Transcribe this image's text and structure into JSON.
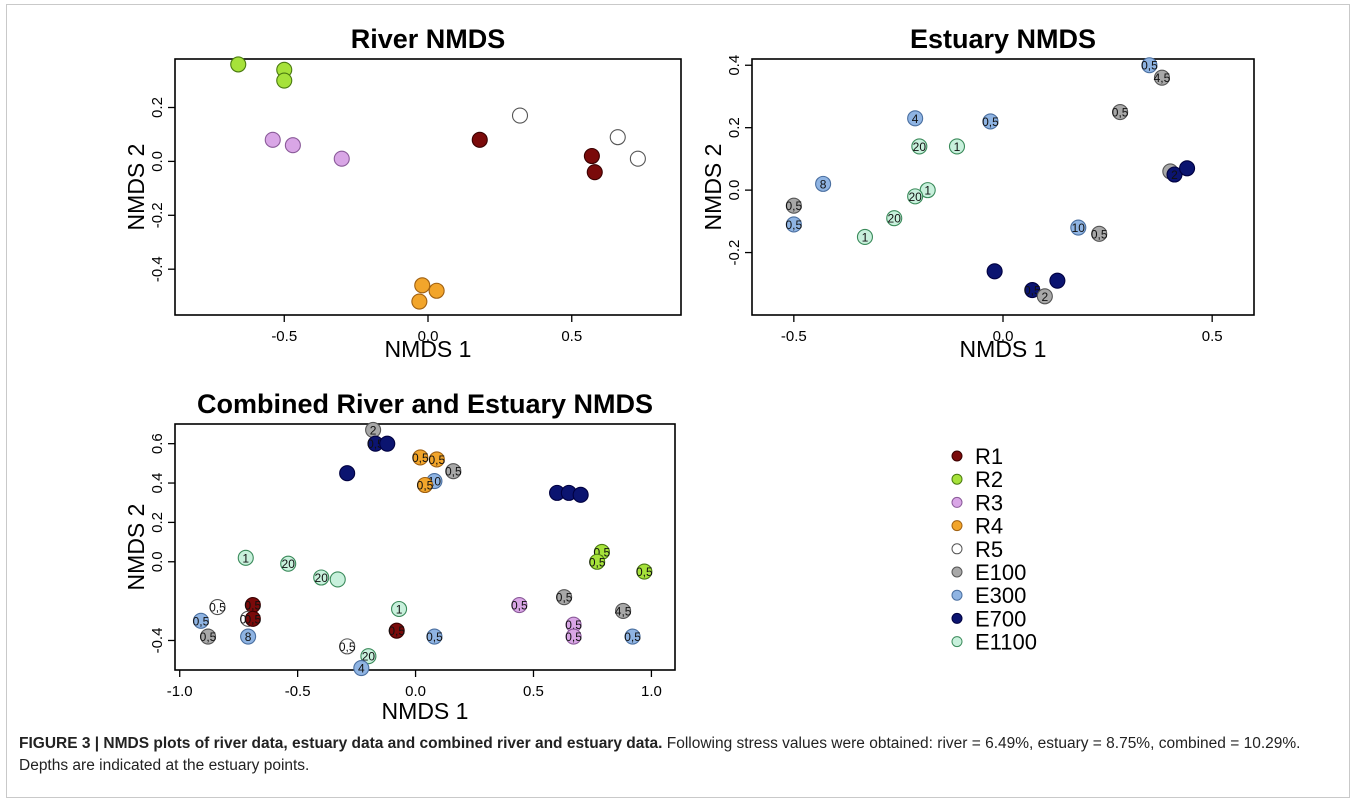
{
  "caption": {
    "figure_label": "FIGURE 3 | NMDS plots of river data, estuary data and combined river and estuary data.",
    "text": " Following stress values were obtained: river = 6.49%, estuary = 8.75%, combined = 10.29%. Depths are indicated at the estuary points."
  },
  "legend": {
    "entries": [
      {
        "label": "R1",
        "color": "#7a0a0a",
        "stroke": "#3a0000"
      },
      {
        "label": "R2",
        "color": "#a6e23a",
        "stroke": "#4a7a10"
      },
      {
        "label": "R3",
        "color": "#d9a6e6",
        "stroke": "#8a5a99"
      },
      {
        "label": "R4",
        "color": "#f2a52b",
        "stroke": "#a06010"
      },
      {
        "label": "R5",
        "color": "#ffffff",
        "stroke": "#555555"
      },
      {
        "label": "E100",
        "color": "#a8a8a8",
        "stroke": "#555555"
      },
      {
        "label": "E300",
        "color": "#8fb4e3",
        "stroke": "#4a6fa0"
      },
      {
        "label": "E700",
        "color": "#0b1470",
        "stroke": "#000040"
      },
      {
        "label": "E1100",
        "color": "#c8f0dc",
        "stroke": "#3a8a5a"
      }
    ]
  },
  "chart_data": [
    {
      "type": "scatter",
      "title": "River NMDS",
      "xlabel": "NMDS 1",
      "ylabel": "NMDS 2",
      "xlim": [
        -0.88,
        0.88
      ],
      "ylim": [
        -0.57,
        0.38
      ],
      "xticks": [
        "-0.5",
        "0.0",
        "0.5"
      ],
      "xtick_values": [
        -0.5,
        0.0,
        0.5
      ],
      "yticks": [
        "-0.4",
        "-0.2",
        "0.0",
        "0.2"
      ],
      "ytick_values": [
        -0.4,
        -0.2,
        0.0,
        0.2
      ],
      "points": [
        {
          "x": -0.66,
          "y": 0.36,
          "group": "R2",
          "label": ""
        },
        {
          "x": -0.5,
          "y": 0.34,
          "group": "R2",
          "label": ""
        },
        {
          "x": -0.5,
          "y": 0.3,
          "group": "R2",
          "label": ""
        },
        {
          "x": -0.54,
          "y": 0.08,
          "group": "R3",
          "label": ""
        },
        {
          "x": -0.47,
          "y": 0.06,
          "group": "R3",
          "label": ""
        },
        {
          "x": -0.3,
          "y": 0.01,
          "group": "R3",
          "label": ""
        },
        {
          "x": 0.18,
          "y": 0.08,
          "group": "R1",
          "label": ""
        },
        {
          "x": 0.57,
          "y": 0.02,
          "group": "R1",
          "label": ""
        },
        {
          "x": 0.58,
          "y": -0.04,
          "group": "R1",
          "label": ""
        },
        {
          "x": 0.32,
          "y": 0.17,
          "group": "R5",
          "label": ""
        },
        {
          "x": 0.66,
          "y": 0.09,
          "group": "R5",
          "label": ""
        },
        {
          "x": 0.73,
          "y": 0.01,
          "group": "R5",
          "label": ""
        },
        {
          "x": -0.02,
          "y": -0.46,
          "group": "R4",
          "label": ""
        },
        {
          "x": 0.03,
          "y": -0.48,
          "group": "R4",
          "label": ""
        },
        {
          "x": -0.03,
          "y": -0.52,
          "group": "R4",
          "label": ""
        }
      ]
    },
    {
      "type": "scatter",
      "title": "Estuary NMDS",
      "xlabel": "NMDS 1",
      "ylabel": "NMDS 2",
      "xlim": [
        -0.6,
        0.6
      ],
      "ylim": [
        -0.4,
        0.42
      ],
      "xticks": [
        "-0.5",
        "0.0",
        "0.5"
      ],
      "xtick_values": [
        -0.5,
        0.0,
        0.5
      ],
      "yticks": [
        "-0.2",
        "0.0",
        "0.2",
        "0.4"
      ],
      "ytick_values": [
        -0.2,
        0.0,
        0.2,
        0.4
      ],
      "points": [
        {
          "x": 0.35,
          "y": 0.4,
          "group": "E300",
          "label": "0,5"
        },
        {
          "x": 0.38,
          "y": 0.36,
          "group": "E100",
          "label": "4,5"
        },
        {
          "x": 0.28,
          "y": 0.25,
          "group": "E100",
          "label": "0,5"
        },
        {
          "x": -0.21,
          "y": 0.23,
          "group": "E300",
          "label": "4"
        },
        {
          "x": -0.03,
          "y": 0.22,
          "group": "E300",
          "label": "0,5"
        },
        {
          "x": -0.2,
          "y": 0.14,
          "group": "E1100",
          "label": "20"
        },
        {
          "x": -0.11,
          "y": 0.14,
          "group": "E1100",
          "label": "1"
        },
        {
          "x": -0.43,
          "y": 0.02,
          "group": "E300",
          "label": "8"
        },
        {
          "x": -0.18,
          "y": 0.0,
          "group": "E1100",
          "label": "1"
        },
        {
          "x": -0.21,
          "y": -0.02,
          "group": "E1100",
          "label": "20"
        },
        {
          "x": -0.5,
          "y": -0.05,
          "group": "E100",
          "label": "0,5"
        },
        {
          "x": -0.5,
          "y": -0.11,
          "group": "E300",
          "label": "0,5"
        },
        {
          "x": -0.26,
          "y": -0.09,
          "group": "E1100",
          "label": "20"
        },
        {
          "x": -0.33,
          "y": -0.15,
          "group": "E1100",
          "label": "1"
        },
        {
          "x": 0.4,
          "y": 0.06,
          "group": "E100",
          "label": ""
        },
        {
          "x": 0.41,
          "y": 0.05,
          "group": "E700",
          "label": "2"
        },
        {
          "x": 0.44,
          "y": 0.07,
          "group": "E700",
          "label": ""
        },
        {
          "x": 0.18,
          "y": -0.12,
          "group": "E300",
          "label": "10"
        },
        {
          "x": 0.23,
          "y": -0.14,
          "group": "E100",
          "label": "0,5"
        },
        {
          "x": -0.02,
          "y": -0.26,
          "group": "E700",
          "label": ""
        },
        {
          "x": 0.13,
          "y": -0.29,
          "group": "E700",
          "label": ""
        },
        {
          "x": 0.07,
          "y": -0.32,
          "group": "E700",
          "label": "0,5"
        },
        {
          "x": 0.1,
          "y": -0.34,
          "group": "E100",
          "label": "2"
        }
      ]
    },
    {
      "type": "scatter",
      "title": "Combined River and Estuary NMDS",
      "xlabel": "NMDS 1",
      "ylabel": "NMDS 2",
      "xlim": [
        -1.02,
        1.1
      ],
      "ylim": [
        -0.55,
        0.7
      ],
      "xticks": [
        "-1.0",
        "-0.5",
        "0.0",
        "0.5",
        "1.0"
      ],
      "xtick_values": [
        -1.0,
        -0.5,
        0.0,
        0.5,
        1.0
      ],
      "yticks": [
        "-0.4",
        "0.0",
        "0.2",
        "0.4",
        "0.6"
      ],
      "ytick_values": [
        -0.4,
        0.0,
        0.2,
        0.4,
        0.6
      ],
      "points": [
        {
          "x": -0.18,
          "y": 0.67,
          "group": "E100",
          "label": "2"
        },
        {
          "x": -0.17,
          "y": 0.6,
          "group": "E700",
          "label": "0,5"
        },
        {
          "x": -0.12,
          "y": 0.6,
          "group": "E700",
          "label": ""
        },
        {
          "x": -0.29,
          "y": 0.45,
          "group": "E700",
          "label": ""
        },
        {
          "x": 0.02,
          "y": 0.53,
          "group": "R4",
          "label": "0,5"
        },
        {
          "x": 0.09,
          "y": 0.52,
          "group": "R4",
          "label": "0,5"
        },
        {
          "x": 0.16,
          "y": 0.46,
          "group": "E100",
          "label": "0,5"
        },
        {
          "x": 0.08,
          "y": 0.41,
          "group": "E300",
          "label": "10"
        },
        {
          "x": 0.04,
          "y": 0.39,
          "group": "R4",
          "label": "0,5"
        },
        {
          "x": 0.6,
          "y": 0.35,
          "group": "E700",
          "label": ""
        },
        {
          "x": 0.65,
          "y": 0.35,
          "group": "E700",
          "label": ""
        },
        {
          "x": 0.7,
          "y": 0.34,
          "group": "E700",
          "label": ""
        },
        {
          "x": -0.72,
          "y": 0.02,
          "group": "E1100",
          "label": "1"
        },
        {
          "x": -0.54,
          "y": -0.01,
          "group": "E1100",
          "label": "20"
        },
        {
          "x": -0.4,
          "y": -0.08,
          "group": "E1100",
          "label": "20"
        },
        {
          "x": -0.33,
          "y": -0.09,
          "group": "E1100",
          "label": ""
        },
        {
          "x": 0.79,
          "y": 0.05,
          "group": "R2",
          "label": "0,5"
        },
        {
          "x": 0.77,
          "y": 0.0,
          "group": "R2",
          "label": "0,5"
        },
        {
          "x": 0.97,
          "y": -0.05,
          "group": "R2",
          "label": "0,5"
        },
        {
          "x": -0.07,
          "y": -0.24,
          "group": "E1100",
          "label": "1"
        },
        {
          "x": 0.44,
          "y": -0.22,
          "group": "R3",
          "label": "0,5"
        },
        {
          "x": 0.63,
          "y": -0.18,
          "group": "E100",
          "label": "0,5"
        },
        {
          "x": 0.88,
          "y": -0.25,
          "group": "E100",
          "label": "4,5"
        },
        {
          "x": 0.67,
          "y": -0.32,
          "group": "R3",
          "label": "0,5"
        },
        {
          "x": 0.67,
          "y": -0.38,
          "group": "R3",
          "label": "0,5"
        },
        {
          "x": 0.92,
          "y": -0.38,
          "group": "E300",
          "label": "0,5"
        },
        {
          "x": -0.84,
          "y": -0.23,
          "group": "R5",
          "label": "0,5"
        },
        {
          "x": -0.69,
          "y": -0.22,
          "group": "R1",
          "label": "0,5"
        },
        {
          "x": -0.71,
          "y": -0.29,
          "group": "R5",
          "label": "0,5"
        },
        {
          "x": -0.69,
          "y": -0.29,
          "group": "R1",
          "label": "0,5"
        },
        {
          "x": -0.91,
          "y": -0.3,
          "group": "E300",
          "label": "0,5"
        },
        {
          "x": -0.88,
          "y": -0.38,
          "group": "E100",
          "label": "0,5"
        },
        {
          "x": -0.71,
          "y": -0.38,
          "group": "E300",
          "label": "8"
        },
        {
          "x": -0.08,
          "y": -0.35,
          "group": "R1",
          "label": "0,5"
        },
        {
          "x": 0.08,
          "y": -0.38,
          "group": "E300",
          "label": "0,5"
        },
        {
          "x": -0.29,
          "y": -0.43,
          "group": "R5",
          "label": "0,5"
        },
        {
          "x": -0.2,
          "y": -0.48,
          "group": "E1100",
          "label": "20"
        },
        {
          "x": -0.23,
          "y": -0.54,
          "group": "E300",
          "label": "4"
        }
      ]
    }
  ]
}
